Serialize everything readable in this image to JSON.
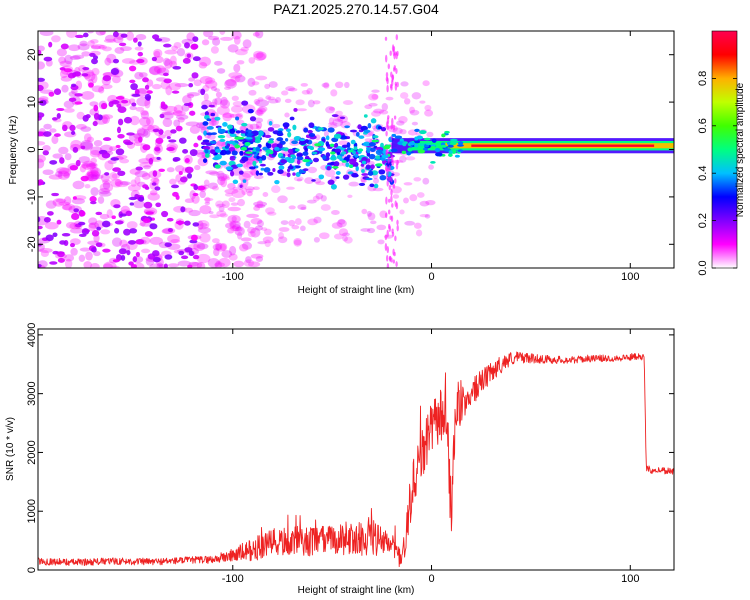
{
  "title": "PAZ1.2025.270.14.57.G04",
  "chart_data": [
    {
      "type": "heatmap",
      "xlabel": "Height of straight line (km)",
      "ylabel": "Frequency (Hz)",
      "xlim": [
        -198,
        122
      ],
      "ylim": [
        -25,
        25
      ],
      "xticks": [
        -100,
        0,
        100
      ],
      "xtick_labels": [
        "-100",
        "0",
        "100"
      ],
      "yticks": [
        -20,
        -10,
        0,
        10,
        20
      ],
      "ytick_labels": [
        "-20",
        "-10",
        "0",
        "10",
        "20"
      ],
      "grid": false,
      "colorbar": {
        "label": "Normalized spectral amplitude",
        "range": [
          0,
          1
        ],
        "ticks": [
          0.0,
          0.2,
          0.4,
          0.6,
          0.8
        ],
        "tick_labels": [
          "0.0",
          "0.2",
          "0.4",
          "0.6",
          "0.8"
        ],
        "colormap": [
          "#ffffff",
          "#ff00ff",
          "#8000ff",
          "#0000ff",
          "#00c0ff",
          "#00ff80",
          "#40ff00",
          "#c0ff00",
          "#ffb000",
          "#ff0000",
          "#ff0050"
        ]
      },
      "features": [
        {
          "name": "noise",
          "x_range": [
            -198,
            -115
          ],
          "freq_range": [
            -25,
            25
          ],
          "amplitude": 0.1
        },
        {
          "name": "multipath",
          "x_range": [
            -115,
            -20
          ],
          "freq_range": [
            -12,
            10
          ],
          "amplitude": 0.3
        },
        {
          "name": "signal tone",
          "x_range": [
            -20,
            122
          ],
          "freq_center": 0.8,
          "amplitude": 0.95
        }
      ]
    },
    {
      "type": "line",
      "xlabel": "Height of straight line (km)",
      "ylabel": "SNR (10 * v/v)",
      "xlim": [
        -198,
        122
      ],
      "ylim": [
        0,
        4100
      ],
      "xticks": [
        -100,
        0,
        100
      ],
      "xtick_labels": [
        "-100",
        "0",
        "100"
      ],
      "yticks": [
        0,
        1000,
        2000,
        3000,
        4000
      ],
      "ytick_labels": [
        "0",
        "1000",
        "2000",
        "3000",
        "4000"
      ],
      "grid": false,
      "color": "#ee2222",
      "series": [
        {
          "name": "SNR",
          "x": [
            -198,
            -180,
            -160,
            -140,
            -120,
            -110,
            -100,
            -90,
            -80,
            -70,
            -60,
            -50,
            -40,
            -30,
            -20,
            -15,
            -12,
            -10,
            -8,
            -5,
            -2,
            0,
            3,
            6,
            8,
            10,
            12,
            15,
            20,
            25,
            30,
            35,
            40,
            45,
            50,
            60,
            70,
            80,
            90,
            100,
            105,
            107,
            108,
            110,
            115,
            122
          ],
          "values": [
            150,
            130,
            150,
            140,
            170,
            180,
            250,
            350,
            450,
            500,
            480,
            520,
            520,
            550,
            400,
            150,
            700,
            1300,
            1700,
            1900,
            2200,
            2400,
            2550,
            2700,
            2300,
            900,
            2600,
            2800,
            3000,
            3200,
            3350,
            3500,
            3600,
            3620,
            3600,
            3580,
            3570,
            3600,
            3600,
            3620,
            3650,
            3600,
            1750,
            1700,
            1700,
            1680
          ],
          "noise_amplitude": [
            60,
            60,
            60,
            60,
            60,
            70,
            120,
            200,
            250,
            250,
            250,
            250,
            280,
            300,
            250,
            150,
            500,
            500,
            500,
            450,
            450,
            450,
            450,
            500,
            600,
            500,
            400,
            300,
            250,
            200,
            180,
            150,
            120,
            100,
            80,
            70,
            60,
            60,
            60,
            60,
            60,
            60,
            60,
            60,
            60,
            60
          ]
        }
      ]
    }
  ]
}
